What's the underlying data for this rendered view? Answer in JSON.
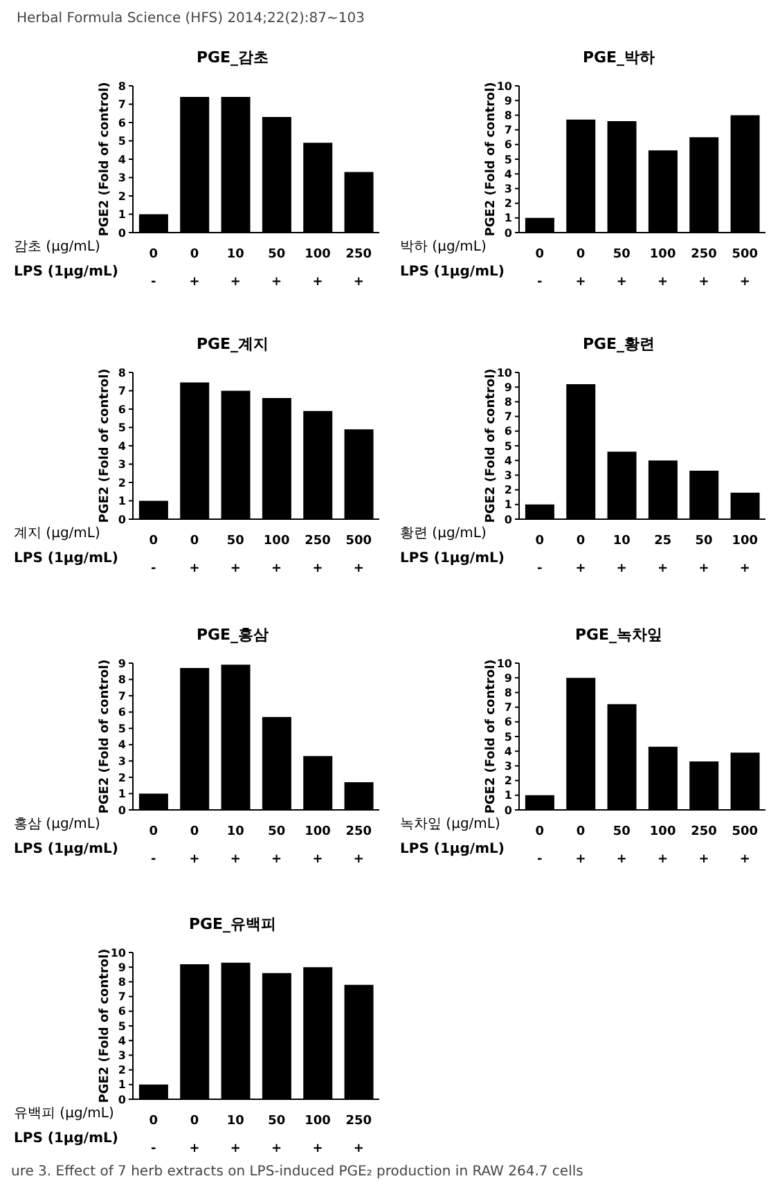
{
  "chart_data": [
    {
      "type": "bar",
      "title": "PGE_감초",
      "ylabel": "PGE2 (Fold of control)",
      "xlabel": "감초 (μg/mL)\nLPS (1μg/mL)",
      "categories": [
        "0\n-",
        "0\n+",
        "10\n+",
        "50\n+",
        "100\n+",
        "250\n+"
      ],
      "values": [
        1,
        7.4,
        7.4,
        6.3,
        4.9,
        3.3
      ],
      "color": "#000000",
      "ylim": [
        0,
        8
      ],
      "yticks": [
        0,
        1,
        2,
        3,
        4,
        5,
        6,
        7,
        8
      ],
      "grid": false,
      "legend": false,
      "annotations": [
        "Herbal Formula Science (HFS) 2014;22(2):87~103"
      ]
    },
    {
      "type": "bar",
      "title": "PGE_박하",
      "ylabel": "PGE2 (Fold of control)",
      "xlabel": "박하 (μg/mL)\nLPS (1μg/mL)",
      "categories": [
        "0\n-",
        "0\n+",
        "50\n+",
        "100\n+",
        "250\n+",
        "500\n+"
      ],
      "values": [
        1,
        7.7,
        7.6,
        5.6,
        6.5,
        8.0
      ],
      "color": "#000000",
      "ylim": [
        0,
        10
      ],
      "yticks": [
        0,
        1,
        2,
        3,
        4,
        5,
        6,
        7,
        8,
        9,
        10
      ],
      "grid": false,
      "legend": false
    },
    {
      "type": "bar",
      "title": "PGE_계지",
      "ylabel": "PGE2 (Fold of control)",
      "xlabel": "계지 (μg/mL)\nLPS (1μg/mL)",
      "categories": [
        "0\n-",
        "0\n+",
        "50\n+",
        "100\n+",
        "250\n+",
        "500\n+"
      ],
      "values": [
        1,
        7.45,
        7.0,
        6.6,
        5.9,
        4.9
      ],
      "color": "#000000",
      "ylim": [
        0,
        8
      ],
      "yticks": [
        0,
        1,
        2,
        3,
        4,
        5,
        6,
        7,
        8
      ],
      "grid": false,
      "legend": false
    },
    {
      "type": "bar",
      "title": "PGE_황련",
      "ylabel": "PGE2 (Fold of control)",
      "xlabel": "황련 (μg/mL)\nLPS (1μg/mL)",
      "categories": [
        "0\n-",
        "0\n+",
        "10\n+",
        "25\n+",
        "50\n+",
        "100\n+"
      ],
      "values": [
        1,
        9.2,
        4.6,
        4.0,
        3.3,
        1.8
      ],
      "color": "#000000",
      "ylim": [
        0,
        10
      ],
      "yticks": [
        0,
        1,
        2,
        3,
        4,
        5,
        6,
        7,
        8,
        9,
        10
      ],
      "grid": false,
      "legend": false
    },
    {
      "type": "bar",
      "title": "PGE_홍삼",
      "ylabel": "PGE2 (Fold of control)",
      "xlabel": "홍삼 (μg/mL)\nLPS (1μg/mL)",
      "categories": [
        "0\n-",
        "0\n+",
        "10\n+",
        "50\n+",
        "100\n+",
        "250\n+"
      ],
      "values": [
        1,
        8.7,
        8.9,
        5.7,
        3.3,
        1.7
      ],
      "color": "#000000",
      "ylim": [
        0,
        9
      ],
      "yticks": [
        0,
        1,
        2,
        3,
        4,
        5,
        6,
        7,
        8,
        9
      ],
      "grid": false,
      "legend": false
    },
    {
      "type": "bar",
      "title": "PGE_녹차잎",
      "ylabel": "PGE2 (Fold of control)",
      "xlabel": "녹차잎 (μg/mL)\nLPS (1μg/mL)",
      "categories": [
        "0\n-",
        "0\n+",
        "50\n+",
        "100\n+",
        "250\n+",
        "500\n+"
      ],
      "values": [
        1,
        9.0,
        7.2,
        4.3,
        3.3,
        3.9
      ],
      "color": "#000000",
      "ylim": [
        0,
        10
      ],
      "yticks": [
        0,
        1,
        2,
        3,
        4,
        5,
        6,
        7,
        8,
        9,
        10
      ],
      "grid": false,
      "legend": false
    },
    {
      "type": "bar",
      "title": "PGE_유백피",
      "ylabel": "PGE2 (Fold of control)",
      "xlabel": "유백피 (μg/mL)\nLPS (1μg/mL)",
      "categories": [
        "0\n-",
        "0\n+",
        "10\n+",
        "50\n+",
        "100\n+",
        "250\n+"
      ],
      "values": [
        1.0,
        9.2,
        9.3,
        8.6,
        9.0,
        7.8
      ],
      "color": "#000000",
      "ylim": [
        0,
        10
      ],
      "yticks": [
        0,
        1,
        2,
        3,
        4,
        5,
        6,
        7,
        8,
        9,
        10
      ],
      "grid": false,
      "legend": false,
      "annotations": [
        "ure 3. Effect of 7 herb extracts on LPS-induced PGE₂ production in RAW 264.7 cells"
      ]
    }
  ]
}
